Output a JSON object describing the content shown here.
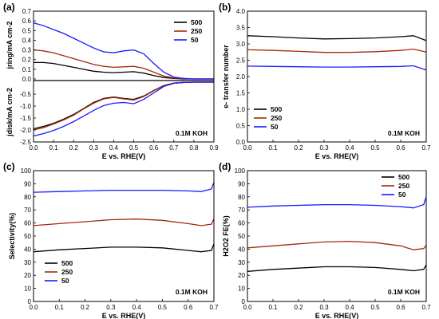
{
  "figure": {
    "background": "#ffffff"
  },
  "chart_data": [
    {
      "panel": "(a)",
      "type": "line",
      "xlabel": "E vs. RHE(V)",
      "xlim": [
        0,
        0.9
      ],
      "xticks": [
        0,
        0.1,
        0.2,
        0.3,
        0.4,
        0.5,
        0.6,
        0.7,
        0.8,
        0.9
      ],
      "annotation": "0.1M KOH",
      "legend_position": "upper-right",
      "subplots": [
        {
          "ylabel": "jring/mA cm-2",
          "ylim": [
            0,
            0.7
          ],
          "yticks": [
            0.0,
            0.1,
            0.2,
            0.3,
            0.4,
            0.5,
            0.6,
            0.7
          ],
          "series": [
            {
              "name": "500",
              "color": "#000000",
              "x": [
                0,
                0.05,
                0.1,
                0.15,
                0.2,
                0.25,
                0.3,
                0.35,
                0.4,
                0.45,
                0.5,
                0.55,
                0.6,
                0.65,
                0.7,
                0.75,
                0.8,
                0.9
              ],
              "y": [
                0.17,
                0.17,
                0.16,
                0.14,
                0.12,
                0.1,
                0.08,
                0.07,
                0.065,
                0.07,
                0.075,
                0.06,
                0.035,
                0.015,
                0.005,
                0.0,
                0.0,
                0.0
              ]
            },
            {
              "name": "250",
              "color": "#a52a0a",
              "x": [
                0,
                0.05,
                0.1,
                0.15,
                0.2,
                0.25,
                0.3,
                0.35,
                0.4,
                0.45,
                0.5,
                0.55,
                0.6,
                0.65,
                0.7,
                0.75,
                0.8,
                0.9
              ],
              "y": [
                0.3,
                0.29,
                0.27,
                0.24,
                0.21,
                0.18,
                0.15,
                0.13,
                0.12,
                0.125,
                0.13,
                0.11,
                0.07,
                0.03,
                0.01,
                0.005,
                0.0,
                0.0
              ]
            },
            {
              "name": "50",
              "color": "#1a1aff",
              "x": [
                0,
                0.05,
                0.1,
                0.15,
                0.2,
                0.25,
                0.3,
                0.35,
                0.4,
                0.45,
                0.5,
                0.55,
                0.6,
                0.65,
                0.7,
                0.75,
                0.8,
                0.9
              ],
              "y": [
                0.58,
                0.55,
                0.51,
                0.47,
                0.42,
                0.37,
                0.32,
                0.28,
                0.27,
                0.29,
                0.3,
                0.26,
                0.16,
                0.07,
                0.02,
                0.005,
                0.0,
                0.0
              ]
            }
          ]
        },
        {
          "ylabel": "jdisk/mA cm-2",
          "ylim": [
            -2.5,
            0.0
          ],
          "yticks": [
            -2.5,
            -2.0,
            -1.5,
            -1.0,
            -0.5
          ],
          "series": [
            {
              "name": "500",
              "color": "#000000",
              "x": [
                0,
                0.05,
                0.1,
                0.15,
                0.2,
                0.25,
                0.3,
                0.35,
                0.4,
                0.45,
                0.5,
                0.55,
                0.6,
                0.65,
                0.7,
                0.75,
                0.8,
                0.9
              ],
              "y": [
                -1.95,
                -1.85,
                -1.72,
                -1.55,
                -1.35,
                -1.1,
                -0.85,
                -0.68,
                -0.62,
                -0.68,
                -0.72,
                -0.58,
                -0.35,
                -0.14,
                -0.04,
                -0.01,
                0.0,
                0.0
              ]
            },
            {
              "name": "250",
              "color": "#a52a0a",
              "x": [
                0,
                0.05,
                0.1,
                0.15,
                0.2,
                0.25,
                0.3,
                0.35,
                0.4,
                0.45,
                0.5,
                0.55,
                0.6,
                0.65,
                0.7,
                0.75,
                0.8,
                0.9
              ],
              "y": [
                -2.0,
                -1.9,
                -1.75,
                -1.58,
                -1.38,
                -1.12,
                -0.88,
                -0.7,
                -0.64,
                -0.7,
                -0.75,
                -0.6,
                -0.36,
                -0.15,
                -0.04,
                -0.01,
                0.0,
                0.0
              ]
            },
            {
              "name": "50",
              "color": "#1a1aff",
              "x": [
                0,
                0.05,
                0.1,
                0.15,
                0.2,
                0.25,
                0.3,
                0.35,
                0.4,
                0.45,
                0.5,
                0.55,
                0.6,
                0.65,
                0.7,
                0.75,
                0.8,
                0.9
              ],
              "y": [
                -2.25,
                -2.15,
                -2.02,
                -1.85,
                -1.65,
                -1.42,
                -1.18,
                -0.98,
                -0.88,
                -0.85,
                -0.9,
                -0.72,
                -0.45,
                -0.18,
                -0.05,
                -0.01,
                0.0,
                0.0
              ]
            }
          ]
        }
      ]
    },
    {
      "panel": "(b)",
      "type": "line",
      "xlabel": "E vs. RHE(V)",
      "ylabel": "e- transfer number",
      "xlim": [
        0,
        0.7
      ],
      "ylim": [
        0,
        4.0
      ],
      "xticks": [
        0.0,
        0.1,
        0.2,
        0.3,
        0.4,
        0.5,
        0.6,
        0.7
      ],
      "yticks": [
        0.0,
        0.5,
        1.0,
        1.5,
        2.0,
        2.5,
        3.0,
        3.5,
        4.0
      ],
      "annotation": "0.1M KOH",
      "legend_position": "lower-left",
      "series": [
        {
          "name": "500",
          "color": "#000000",
          "x": [
            0,
            0.1,
            0.2,
            0.3,
            0.4,
            0.5,
            0.6,
            0.65,
            0.7
          ],
          "y": [
            3.25,
            3.22,
            3.18,
            3.15,
            3.16,
            3.18,
            3.22,
            3.25,
            3.1
          ]
        },
        {
          "name": "250",
          "color": "#a52a0a",
          "x": [
            0,
            0.1,
            0.2,
            0.3,
            0.4,
            0.5,
            0.6,
            0.65,
            0.7
          ],
          "y": [
            2.82,
            2.8,
            2.77,
            2.74,
            2.74,
            2.76,
            2.8,
            2.84,
            2.75
          ]
        },
        {
          "name": "50",
          "color": "#1a1aff",
          "x": [
            0,
            0.1,
            0.2,
            0.3,
            0.4,
            0.5,
            0.6,
            0.65,
            0.7
          ],
          "y": [
            2.32,
            2.31,
            2.3,
            2.29,
            2.29,
            2.3,
            2.31,
            2.33,
            2.2
          ]
        }
      ]
    },
    {
      "panel": "(c)",
      "type": "line",
      "xlabel": "E vs. RHE(V)",
      "ylabel": "Selectivity(%)",
      "xlim": [
        0,
        0.7
      ],
      "ylim": [
        0,
        100
      ],
      "xticks": [
        0.0,
        0.1,
        0.2,
        0.3,
        0.4,
        0.5,
        0.6,
        0.7
      ],
      "yticks": [
        0,
        10,
        20,
        30,
        40,
        50,
        60,
        70,
        80,
        90,
        100
      ],
      "annotation": "0.1M KOH",
      "legend_position": "lower-left",
      "series": [
        {
          "name": "500",
          "color": "#000000",
          "x": [
            0,
            0.1,
            0.2,
            0.3,
            0.4,
            0.5,
            0.6,
            0.65,
            0.69,
            0.7
          ],
          "y": [
            38,
            39.5,
            40.5,
            41.5,
            41.5,
            41,
            39,
            38,
            39,
            44
          ]
        },
        {
          "name": "250",
          "color": "#a52a0a",
          "x": [
            0,
            0.1,
            0.2,
            0.3,
            0.4,
            0.5,
            0.6,
            0.65,
            0.69,
            0.7
          ],
          "y": [
            58,
            59.5,
            61,
            62.5,
            63,
            62,
            59.5,
            58,
            59,
            63
          ]
        },
        {
          "name": "50",
          "color": "#1a1aff",
          "x": [
            0,
            0.1,
            0.2,
            0.3,
            0.4,
            0.5,
            0.6,
            0.65,
            0.69,
            0.7
          ],
          "y": [
            83.5,
            84,
            84.5,
            85,
            85,
            85,
            84.5,
            84,
            86,
            91
          ]
        }
      ]
    },
    {
      "panel": "(d)",
      "type": "line",
      "xlabel": "E vs. RHE(V)",
      "ylabel": "H2O2 FE(%)",
      "xlim": [
        0,
        0.7
      ],
      "ylim": [
        0,
        100
      ],
      "xticks": [
        0.0,
        0.1,
        0.2,
        0.3,
        0.4,
        0.5,
        0.6,
        0.7
      ],
      "yticks": [
        0,
        10,
        20,
        30,
        40,
        50,
        60,
        70,
        80,
        90,
        100
      ],
      "annotation": "0.1M KOH",
      "legend_position": "upper-right",
      "series": [
        {
          "name": "500",
          "color": "#000000",
          "x": [
            0,
            0.1,
            0.2,
            0.3,
            0.4,
            0.5,
            0.6,
            0.65,
            0.69,
            0.7
          ],
          "y": [
            23,
            24.5,
            25.5,
            26.5,
            26.5,
            26,
            24.5,
            23.5,
            24.5,
            28
          ]
        },
        {
          "name": "250",
          "color": "#a52a0a",
          "x": [
            0,
            0.1,
            0.2,
            0.3,
            0.4,
            0.5,
            0.6,
            0.65,
            0.69,
            0.7
          ],
          "y": [
            41,
            42.5,
            44,
            45.5,
            46,
            45,
            42.5,
            39.5,
            40.5,
            43
          ]
        },
        {
          "name": "50",
          "color": "#1a1aff",
          "x": [
            0,
            0.1,
            0.2,
            0.3,
            0.4,
            0.5,
            0.6,
            0.65,
            0.69,
            0.7
          ],
          "y": [
            72,
            73,
            73.5,
            74,
            74,
            73.5,
            72.5,
            71.5,
            74,
            80
          ]
        }
      ]
    }
  ]
}
